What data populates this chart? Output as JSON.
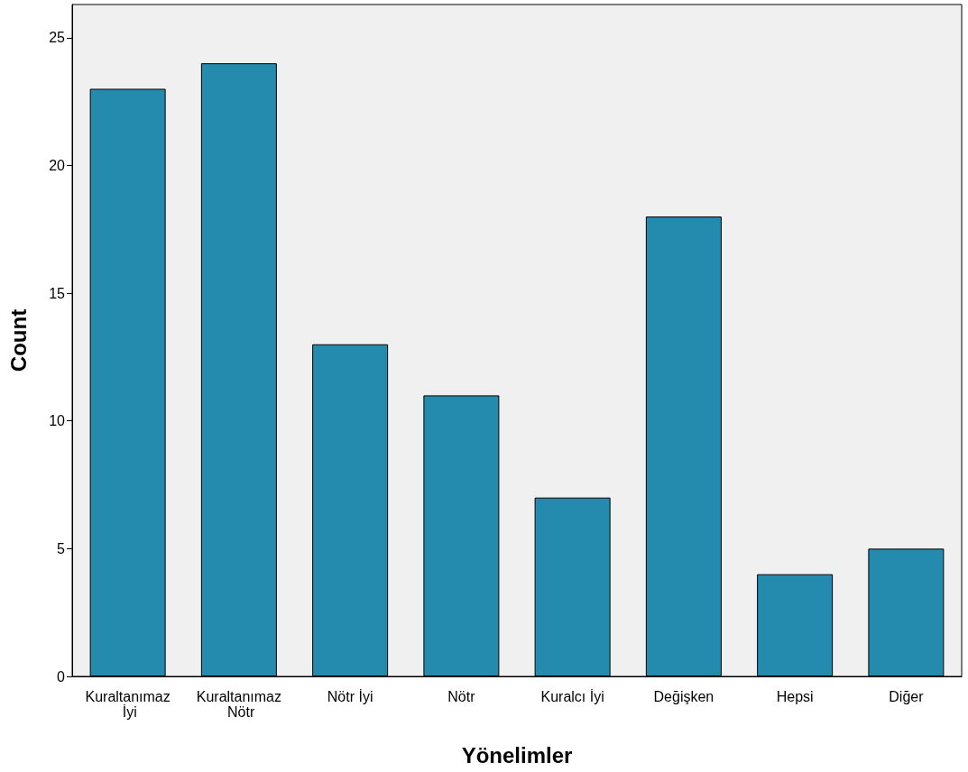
{
  "chart_data": {
    "type": "bar",
    "xlabel": "Yönelimler",
    "ylabel": "Count",
    "categories": [
      "Kuraltanımaz İyi",
      "Kuraltanımaz Nötr",
      "Nötr İyi",
      "Nötr",
      "Kuralcı İyi",
      "Değişken",
      "Hepsi",
      "Diğer"
    ],
    "values": [
      23,
      24,
      13,
      11,
      7,
      18,
      4,
      5
    ],
    "color": "#248baf",
    "ylim": [
      0,
      26.3
    ],
    "yticks": [
      0,
      5,
      10,
      15,
      20,
      25
    ]
  }
}
